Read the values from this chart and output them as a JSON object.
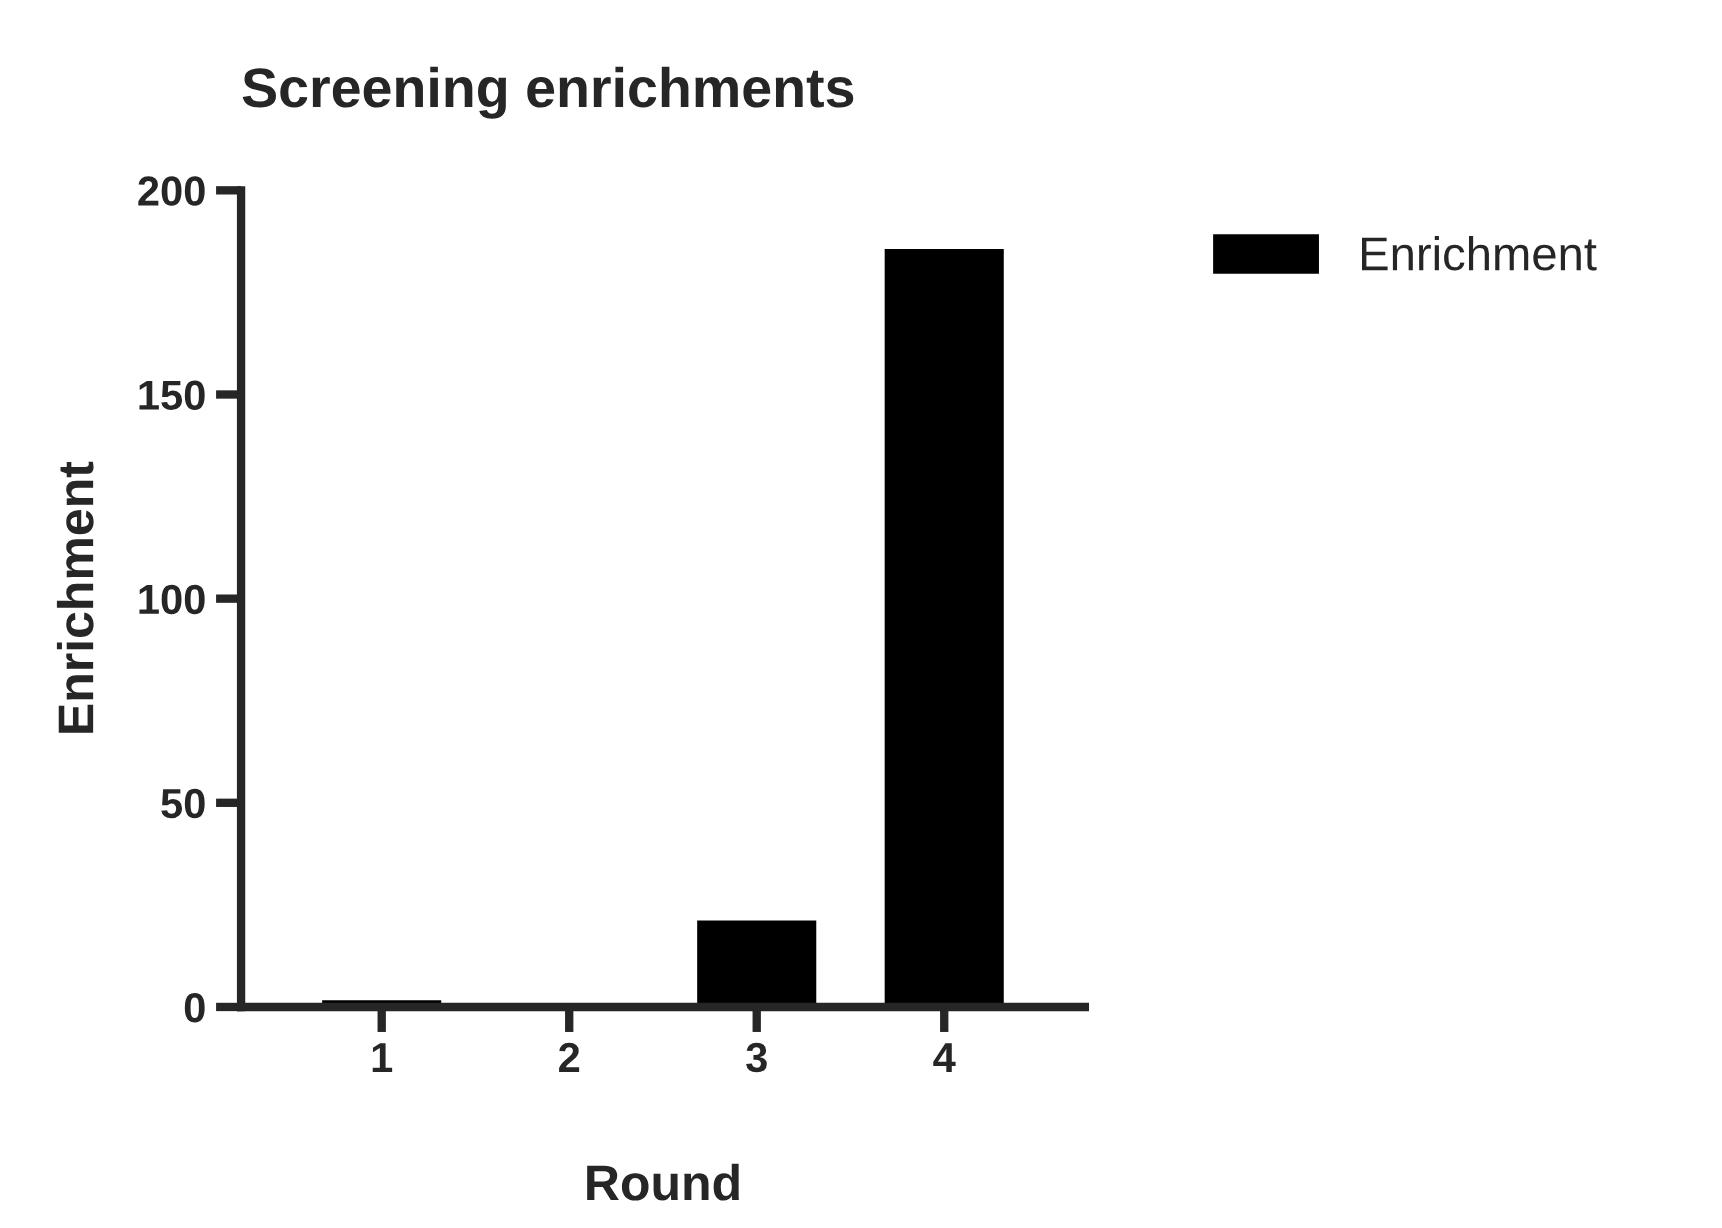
{
  "chart_data": {
    "type": "bar",
    "title": "Screening enrichments",
    "xlabel": "Round",
    "ylabel": "Enrichment",
    "categories": [
      "1",
      "2",
      "3",
      "4"
    ],
    "series": [
      {
        "name": "Enrichment",
        "color": "#000000",
        "values": [
          2,
          0.5,
          21.5,
          186
        ]
      }
    ],
    "ylim": [
      0,
      200
    ],
    "yticks": [
      0,
      50,
      100,
      150,
      200
    ],
    "grid": false,
    "legend": "top right"
  }
}
